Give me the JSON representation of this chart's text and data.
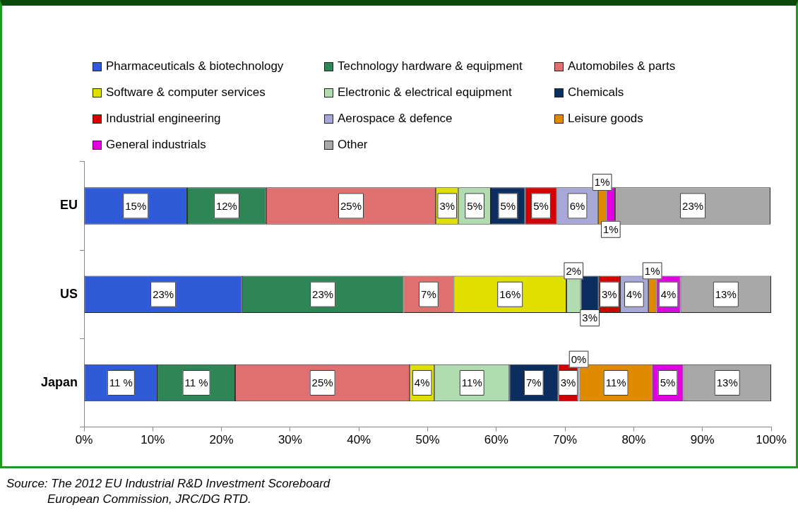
{
  "chart_data": {
    "type": "bar",
    "orientation": "horizontal",
    "stacked": true,
    "categories": [
      "EU",
      "US",
      "Japan"
    ],
    "xlim": [
      0,
      100
    ],
    "xticks": [
      {
        "value": 0,
        "label": "0%"
      },
      {
        "value": 10,
        "label": "10%"
      },
      {
        "value": 20,
        "label": "20%"
      },
      {
        "value": 30,
        "label": "30%"
      },
      {
        "value": 40,
        "label": "40%"
      },
      {
        "value": 50,
        "label": "50%"
      },
      {
        "value": 60,
        "label": "60%"
      },
      {
        "value": 70,
        "label": "70%"
      },
      {
        "value": 80,
        "label": "80%"
      },
      {
        "value": 90,
        "label": "90%"
      },
      {
        "value": 100,
        "label": "100%"
      }
    ],
    "grid": false,
    "legend": "top",
    "series": [
      {
        "name": "Pharmaceuticals & biotechnology",
        "color": "#2f5ad8",
        "values": [
          15.0,
          23.0,
          10.7
        ],
        "value_labels": [
          "15%",
          "23%",
          "11 %"
        ]
      },
      {
        "name": "Technology hardware & equipment",
        "color": "#2e8555",
        "values": [
          11.5,
          23.5,
          11.3
        ],
        "value_labels": [
          "12%",
          "23%",
          "11 %"
        ]
      },
      {
        "name": "Automobiles & parts",
        "color": "#e07070",
        "values": [
          24.7,
          7.3,
          25.4
        ],
        "value_labels": [
          "25%",
          "7%",
          "25%"
        ]
      },
      {
        "name": "Software & computer services",
        "color": "#e0e000",
        "values": [
          3.3,
          16.4,
          3.6
        ],
        "value_labels": [
          "3%",
          "16%",
          "4%"
        ]
      },
      {
        "name": "Electronic & electrical equipment",
        "color": "#b0dcb0",
        "values": [
          4.7,
          2.1,
          10.9
        ],
        "value_labels": [
          "5%",
          "2%",
          "11%"
        ]
      },
      {
        "name": "Chemicals",
        "color": "#0a2f5f",
        "values": [
          5.0,
          2.6,
          7.1
        ],
        "value_labels": [
          "5%",
          "3%",
          "7%"
        ]
      },
      {
        "name": "Industrial engineering",
        "color": "#d40000",
        "values": [
          4.6,
          3.1,
          2.9
        ],
        "value_labels": [
          "5%",
          "3%",
          "3%"
        ]
      },
      {
        "name": "Aerospace & defence",
        "color": "#a8a8d8",
        "values": [
          6.0,
          4.1,
          0.2
        ],
        "value_labels": [
          "6%",
          "4%",
          "0%"
        ]
      },
      {
        "name": "Leisure goods",
        "color": "#e08a00",
        "values": [
          1.2,
          1.2,
          10.6
        ],
        "value_labels": [
          "1%",
          "1%",
          "11%"
        ]
      },
      {
        "name": "General industrials",
        "color": "#e000e0",
        "values": [
          1.3,
          3.5,
          4.5
        ],
        "value_labels": [
          "1%",
          "4%",
          "5%"
        ]
      },
      {
        "name": "Other",
        "color": "#a8a8a8",
        "values": [
          22.6,
          13.2,
          12.8
        ],
        "value_labels": [
          "23%",
          "13%",
          "13%"
        ]
      }
    ],
    "annotations": [
      "Source: The 2012 EU Industrial R&D Investment Scoreboard",
      "European Commission, JRC/DG RTD."
    ]
  }
}
